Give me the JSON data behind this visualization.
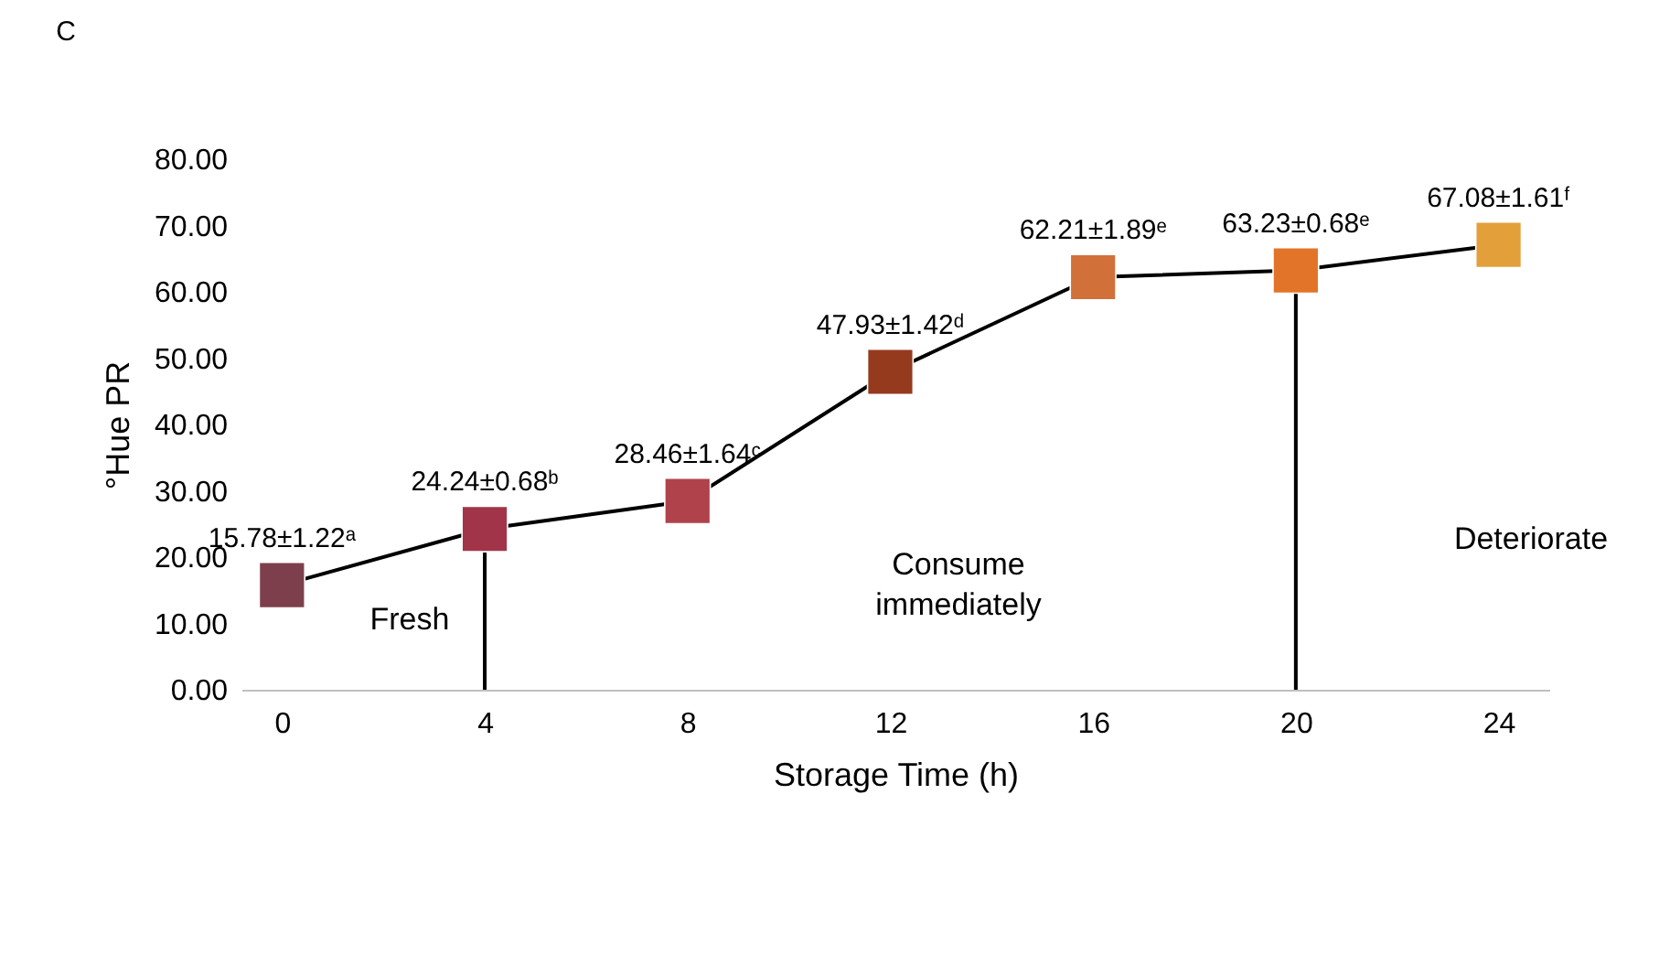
{
  "chart_data": {
    "type": "line",
    "xlabel": "Storage Time (h)",
    "ylabel": "°Hue PR",
    "x": [
      0,
      4,
      8,
      12,
      16,
      20,
      24
    ],
    "series": [
      {
        "color": "#000000",
        "values": [
          15.78,
          24.24,
          28.46,
          47.93,
          62.21,
          63.23,
          67.08
        ],
        "colors": [
          "#7d3f4b",
          "#a2344a",
          "#b0424c",
          "#963a1e",
          "#d2703a",
          "#e2742a",
          "#e3a03a"
        ],
        "value_labels": [
          "15.78±1.22ᵃ",
          "24.24±0.68ᵇ",
          "28.46±1.64ᶜ",
          "47.93±1.42ᵈ",
          "62.21±1.89ᵉ",
          "63.23±0.68ᵉ",
          "67.08±1.61ᶠ"
        ]
      }
    ],
    "marker": "square",
    "line_style": "solid",
    "xlim": [
      -0.8,
      25
    ],
    "xticks": [
      0,
      4,
      8,
      12,
      16,
      20,
      24
    ],
    "ylim": [
      0,
      80
    ],
    "yticks": [
      {
        "value": 0,
        "label": "0.00"
      },
      {
        "value": 10,
        "label": "10.00"
      },
      {
        "value": 20,
        "label": "20.00"
      },
      {
        "value": 30,
        "label": "30.00"
      },
      {
        "value": 40,
        "label": "40.00"
      },
      {
        "value": 50,
        "label": "50.00"
      },
      {
        "value": 60,
        "label": "60.00"
      },
      {
        "value": 70,
        "label": "70.00"
      },
      {
        "value": 80,
        "label": "80.00"
      }
    ],
    "grid": false,
    "ref_lines": [
      {
        "axis": "x",
        "value": 4,
        "color": "#000000"
      },
      {
        "axis": "x",
        "value": 20,
        "color": "#000000"
      }
    ],
    "annotations": [
      "C",
      "Fresh",
      "Consume\nimmediately",
      "Deteriorate"
    ]
  }
}
